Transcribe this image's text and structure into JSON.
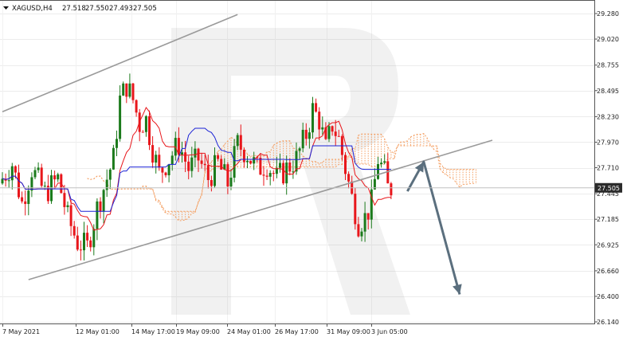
{
  "chart_data": {
    "type": "candlestick",
    "symbol": "XAGUSD,H4",
    "ohlc_header": [
      "27.518",
      "27.550",
      "27.493",
      "27.505"
    ],
    "current_price": "27.505",
    "ylim": [
      26.14,
      29.33
    ],
    "y_ticks": [
      "29.280",
      "29.020",
      "28.755",
      "28.495",
      "28.230",
      "27.970",
      "27.710",
      "27.445",
      "27.185",
      "26.925",
      "26.660",
      "26.400",
      "26.140"
    ],
    "x_ticks": [
      "7 May 2021",
      "12 May 01:00",
      "14 May 17:00",
      "19 May 09:00",
      "24 May 01:00",
      "26 May 17:00",
      "31 May 09:00",
      "3 Jun 05:00"
    ],
    "n_bars": 120,
    "series": [
      {
        "name": "Tenkan-sen",
        "color": "#e8161b"
      },
      {
        "name": "Kijun-sen",
        "color": "#1b22d6"
      },
      {
        "name": "Senkou Span A",
        "color": "#f4a064"
      },
      {
        "name": "Senkou Span B",
        "color": "#f4a064"
      }
    ],
    "channel": {
      "upper": {
        "from": [
          0,
          28.28
        ],
        "to": [
          72,
          29.27
        ]
      },
      "lower": {
        "from": [
          8,
          26.57
        ],
        "to": [
          150,
          27.99
        ]
      }
    },
    "forecast": [
      [
        124,
        27.47
      ],
      [
        129,
        27.77
      ],
      [
        140,
        26.42
      ]
    ],
    "colors": {
      "up": "#1b7a1b",
      "down": "#e8161b",
      "channel": "#9a9a9a",
      "forecast": "#5b6f7e",
      "price_box": "#2b2b2b"
    }
  }
}
